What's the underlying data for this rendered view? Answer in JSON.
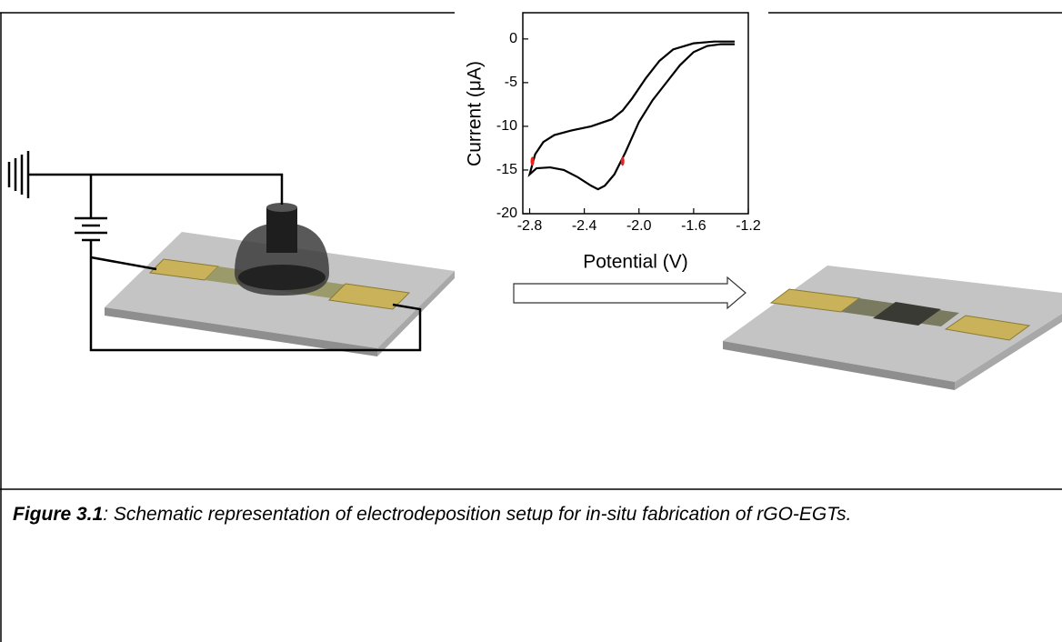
{
  "chart_data": {
    "type": "line",
    "xlabel": "Potential (V)",
    "ylabel": "Current (μA)",
    "xlim": [
      -2.85,
      -1.2
    ],
    "ylim": [
      -20,
      3
    ],
    "xticks": [
      -2.8,
      -2.4,
      {
        "value": -2,
        "label": "-2.0"
      },
      -1.6,
      -1.2
    ],
    "yticks": [
      0,
      -5,
      -10,
      -15,
      -20
    ],
    "series": [
      {
        "color": "#000000",
        "x": [
          -1.3,
          -1.45,
          -1.6,
          -1.75,
          -1.85,
          -1.95,
          -2.05,
          -2.12,
          -2.2,
          -2.35,
          -2.5,
          -2.62,
          -2.7,
          -2.76,
          -2.8,
          -2.75,
          -2.65,
          -2.55,
          -2.45,
          -2.35,
          -2.3,
          -2.25,
          -2.18,
          -2.1,
          -2.0,
          -1.9,
          -1.8,
          -1.7,
          -1.6,
          -1.5,
          -1.4,
          -1.3
        ],
        "values": [
          -0.3,
          -0.3,
          -0.5,
          -1.2,
          -2.5,
          -4.5,
          -6.8,
          -8.2,
          -9.2,
          -10,
          -10.5,
          -11,
          -11.8,
          -13.2,
          -15.5,
          -14.8,
          -14.7,
          -15,
          -15.8,
          -16.8,
          -17.2,
          -16.8,
          -15.5,
          -13,
          -9.5,
          -7,
          -5,
          -3,
          -1.5,
          -0.8,
          -0.6,
          -0.6
        ]
      },
      {
        "color": "#e8231f",
        "x": [
          -2.78,
          -2.12
        ],
        "values": [
          -14,
          -14
        ]
      }
    ]
  },
  "caption": {
    "label": "Figure 3.1",
    "text": ": Schematic representation of electrodeposition setup for in-situ fabrication of rGO-EGTs."
  }
}
